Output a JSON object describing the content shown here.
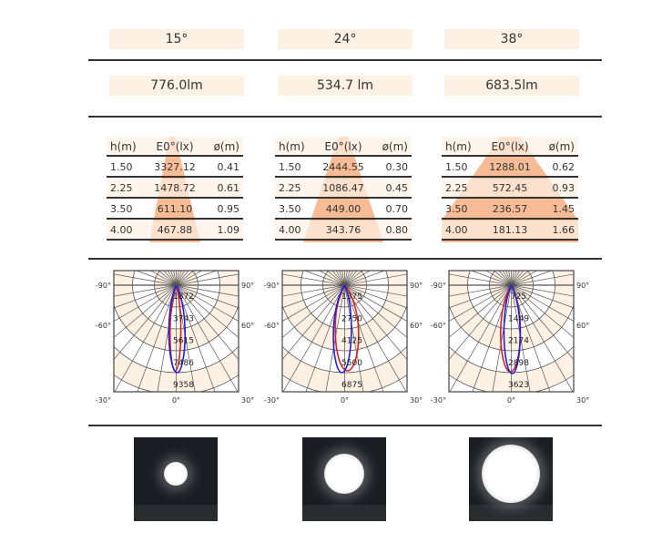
{
  "columns": [
    {
      "beam_angle": "15°",
      "flux": "776.0lm",
      "table": {
        "headers": [
          "h(m)",
          "E0°(lx)",
          "ø(m)"
        ],
        "rows": [
          [
            "1.50",
            "3327.12",
            "0.41"
          ],
          [
            "2.25",
            "1478.72",
            "0.61"
          ],
          [
            "3.50",
            "611.10",
            "0.95"
          ],
          [
            "4.00",
            "467.88",
            "1.09"
          ]
        ]
      },
      "polar": {
        "ring_labels": [
          "1872",
          "3743",
          "5615",
          "7486",
          "9358"
        ],
        "angle_labels": [
          "-90°",
          "90°",
          "-60°",
          "60°",
          "-30°",
          "0°",
          "30°"
        ]
      }
    },
    {
      "beam_angle": "24°",
      "flux": "534.7 lm",
      "table": {
        "headers": [
          "h(m)",
          "E0°(lx)",
          "ø(m)"
        ],
        "rows": [
          [
            "1.50",
            "2444.55",
            "0.30"
          ],
          [
            "2.25",
            "1086.47",
            "0.45"
          ],
          [
            "3.50",
            "449.00",
            "0.70"
          ],
          [
            "4.00",
            "343.76",
            "0.80"
          ]
        ]
      },
      "polar": {
        "ring_labels": [
          "1375",
          "2750",
          "4125",
          "5500",
          "6875"
        ],
        "angle_labels": [
          "-90°",
          "90°",
          "-60°",
          "60°",
          "-30°",
          "0°",
          "30°"
        ]
      }
    },
    {
      "beam_angle": "38°",
      "flux": "683.5lm",
      "table": {
        "headers": [
          "h(m)",
          "E0°(lx)",
          "ø(m)"
        ],
        "rows": [
          [
            "1.50",
            "1288.01",
            "0.62"
          ],
          [
            "2.25",
            "572.45",
            "0.93"
          ],
          [
            "3.50",
            "236.57",
            "1.45"
          ],
          [
            "4.00",
            "181.13",
            "1.66"
          ]
        ]
      },
      "polar": {
        "ring_labels": [
          "725",
          "1449",
          "2174",
          "2898",
          "3623"
        ],
        "angle_labels": [
          "-90°",
          "90°",
          "-60°",
          "60°",
          "-30°",
          "0°",
          "30°"
        ]
      }
    }
  ],
  "colors": {
    "accent": "#f6b58a",
    "band": "#fdf1e4",
    "c0_curve": "#e02020",
    "c90_curve": "#2020e0"
  }
}
